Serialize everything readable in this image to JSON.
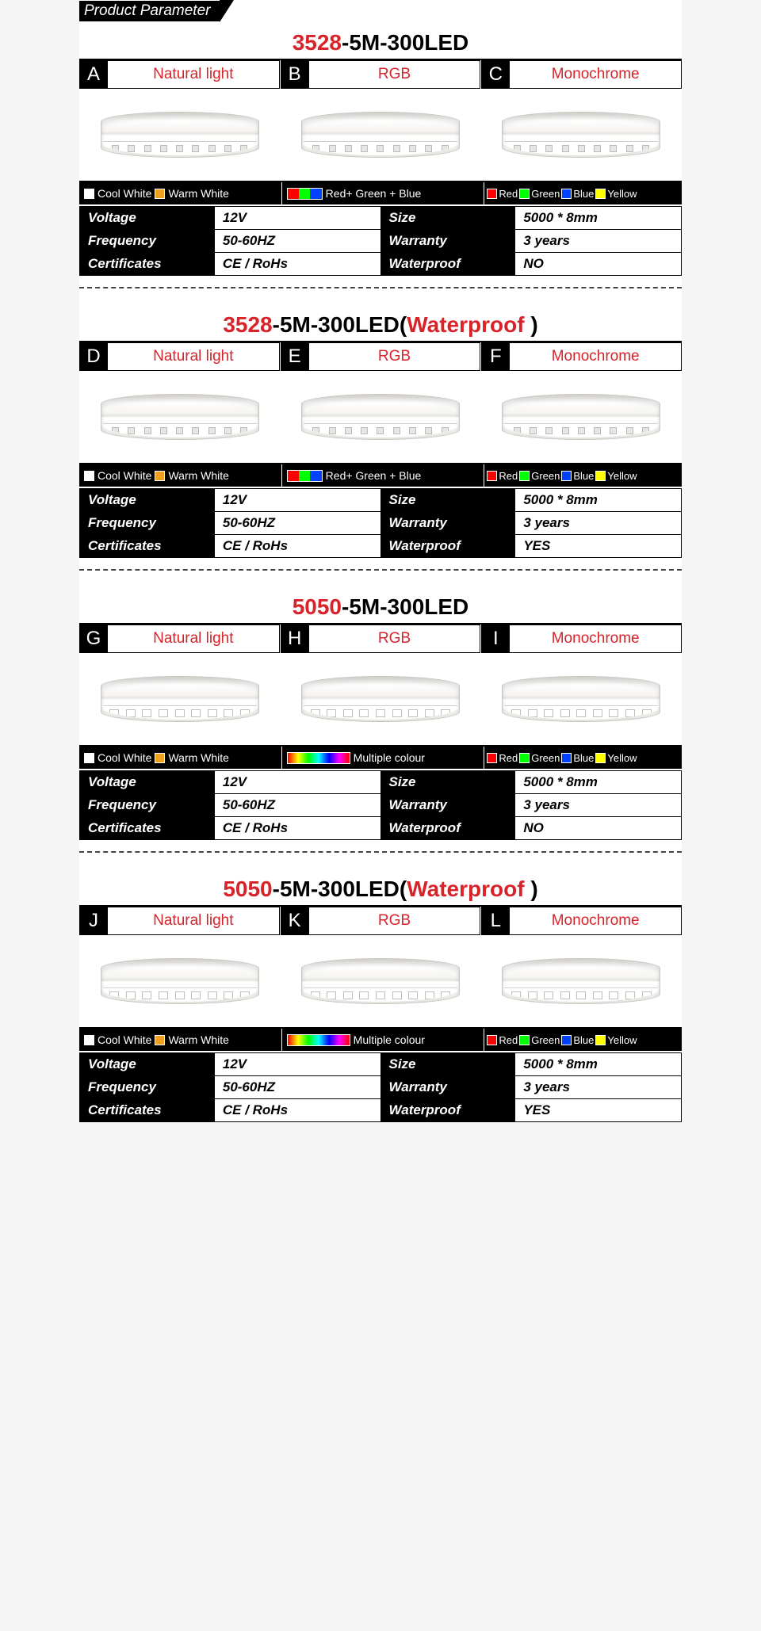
{
  "header": "Product Parameter",
  "common": {
    "labels": {
      "natural": "Natural light",
      "rgb": "RGB",
      "mono": "Monochrome",
      "cool": "Cool White",
      "warm": "Warm White",
      "rgb_text": "Red+ Green + Blue",
      "multi": "Multiple colour",
      "red": "Red",
      "green": "Green",
      "blue": "Blue",
      "yellow": "Yellow"
    },
    "specLabels": {
      "voltage": "Voltage",
      "size": "Size",
      "frequency": "Frequency",
      "warranty": "Warranty",
      "certificates": "Certificates",
      "waterproof": "Waterproof"
    },
    "specVals": {
      "voltage": "12V",
      "size": "5000 * 8mm",
      "frequency": "50-60HZ",
      "warranty": "3 years",
      "certificates": "CE / RoHs"
    },
    "colors": {
      "coolwhite": "#ffffff",
      "warmwhite": "#f0a020",
      "red": "#ff0000",
      "green": "#00ff00",
      "blue": "#0040ff",
      "yellow": "#ffff00"
    }
  },
  "sections": [
    {
      "title": {
        "p1": "3528",
        "p2": "-5M-300LED",
        "p3": ""
      },
      "letters": [
        "A",
        "B",
        "C"
      ],
      "middle": "rgb",
      "waterproof": "NO",
      "strip": "small"
    },
    {
      "title": {
        "p1": "3528",
        "p2": "-5M-300LED(",
        "p3": "Waterproof ",
        "p4": ")"
      },
      "letters": [
        "D",
        "E",
        "F"
      ],
      "middle": "rgb",
      "waterproof": "YES",
      "strip": "small"
    },
    {
      "title": {
        "p1": "5050",
        "p2": "-5M-300LED",
        "p3": ""
      },
      "letters": [
        "G",
        "H",
        "I"
      ],
      "middle": "multi",
      "waterproof": "NO",
      "strip": "big"
    },
    {
      "title": {
        "p1": "5050",
        "p2": "-5M-300LED(",
        "p3": "Waterproof ",
        "p4": ")"
      },
      "letters": [
        "J",
        "K",
        "L"
      ],
      "middle": "multi",
      "waterproof": "YES",
      "strip": "big"
    }
  ]
}
